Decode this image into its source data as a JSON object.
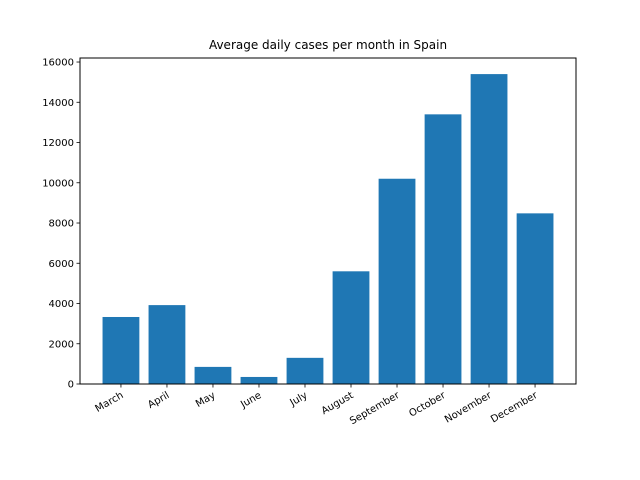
{
  "chart_data": {
    "type": "bar",
    "title": "Average daily cases per month in Spain",
    "xlabel": "",
    "ylabel": "",
    "categories": [
      "March",
      "April",
      "May",
      "June",
      "July",
      "August",
      "September",
      "October",
      "November",
      "December"
    ],
    "values": [
      3330,
      3920,
      850,
      350,
      1300,
      5600,
      10200,
      13400,
      15400,
      8480
    ],
    "ylim": [
      0,
      16200
    ],
    "yticks": [
      0,
      2000,
      4000,
      6000,
      8000,
      10000,
      12000,
      14000,
      16000
    ],
    "ytick_labels": [
      "0",
      "2000",
      "4000",
      "6000",
      "8000",
      "10000",
      "12000",
      "14000",
      "16000"
    ],
    "bar_color": "#1f77b4",
    "grid": false,
    "legend": "none"
  }
}
